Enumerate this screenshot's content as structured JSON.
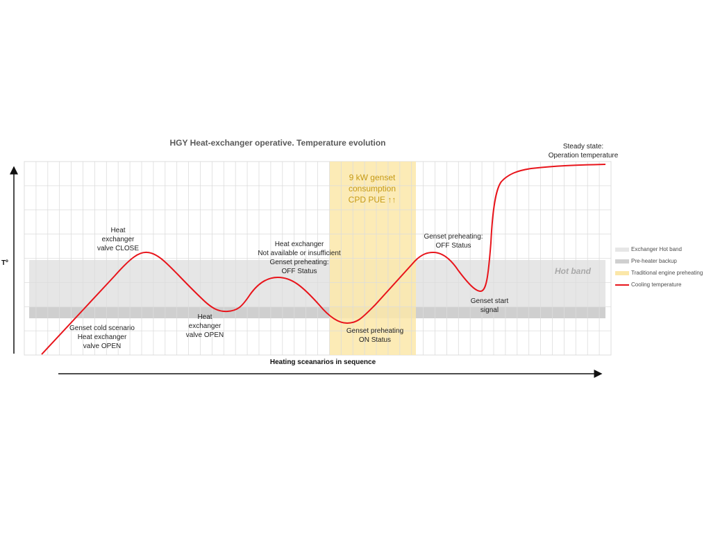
{
  "title": "HGY Heat-exchanger operative. Temperature evolution",
  "x_axis_label": "Heating sceanarios in sequence",
  "y_axis_label": "Tº",
  "band_label": "Hot band",
  "highlight_text": [
    "9 kW genset",
    "consumption",
    "CPD PUE ↑↑"
  ],
  "annotations": {
    "cold_start": [
      "Genset cold scenario",
      "Heat exchanger",
      "valve OPEN"
    ],
    "valve_close": [
      "Heat",
      "exchanger",
      "valve CLOSE"
    ],
    "valve_open": [
      "Heat",
      "exchanger",
      "valve OPEN"
    ],
    "not_available": [
      "Heat exchanger",
      "Not available or insufficient",
      "Genset preheating:",
      "OFF Status"
    ],
    "preheat_on": [
      "Genset preheating",
      "ON Status"
    ],
    "preheat_off": [
      "Genset preheating:",
      "OFF Status"
    ],
    "start_signal": [
      "Genset start",
      "signal"
    ],
    "steady_state": [
      "Steady state:",
      "Operation temperature"
    ]
  },
  "legend": [
    {
      "label": "Exchanger Hot band",
      "color": "#e6e6e6",
      "kind": "band"
    },
    {
      "label": "Pre-heater backup",
      "color": "#cfcfcf",
      "kind": "band"
    },
    {
      "label": "Traditional engine preheating",
      "color": "#fbe7a9",
      "kind": "band"
    },
    {
      "label": "Cooling temperature",
      "color": "#e8141b",
      "kind": "line"
    }
  ],
  "colors": {
    "curve": "#e8141b",
    "hot_band": "#e6e6e6",
    "backup_band": "#cfcfcf",
    "preheat_band": "#fbe7a9",
    "grid": "#dcdcdc"
  }
}
